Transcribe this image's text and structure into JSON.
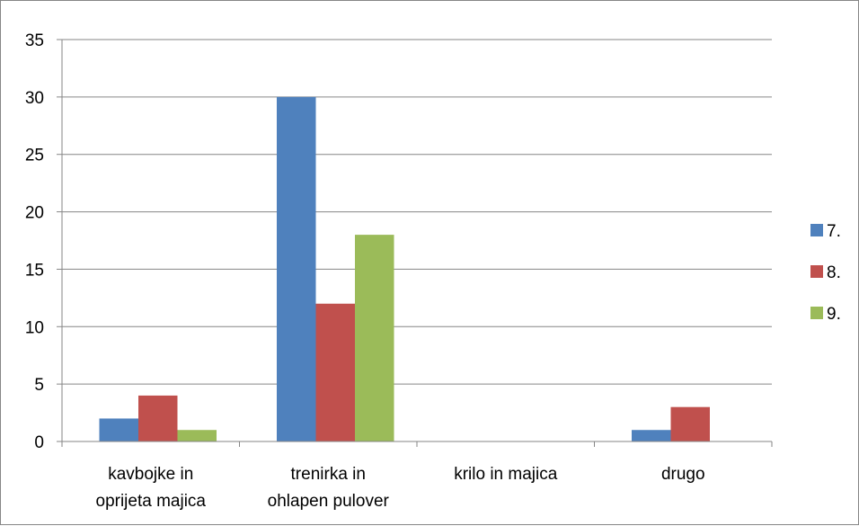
{
  "chart_data": {
    "type": "bar",
    "categories": [
      [
        "kavbojke in",
        "oprijeta majica"
      ],
      [
        "trenirka in",
        "ohlapen pulover"
      ],
      [
        "krilo in majica"
      ],
      [
        "drugo"
      ]
    ],
    "series": [
      {
        "name": "7.",
        "color": "#4F81BD",
        "values": [
          2,
          30,
          0,
          1
        ]
      },
      {
        "name": "8.",
        "color": "#C0504D",
        "values": [
          4,
          12,
          0,
          3
        ]
      },
      {
        "name": "9.",
        "color": "#9BBB59",
        "values": [
          1,
          18,
          0,
          0
        ]
      }
    ],
    "ylim": [
      0,
      35
    ],
    "yticks": [
      0,
      5,
      10,
      15,
      20,
      25,
      30,
      35
    ],
    "grid": true,
    "legend_position": "right",
    "title": "",
    "xlabel": "",
    "ylabel": ""
  }
}
